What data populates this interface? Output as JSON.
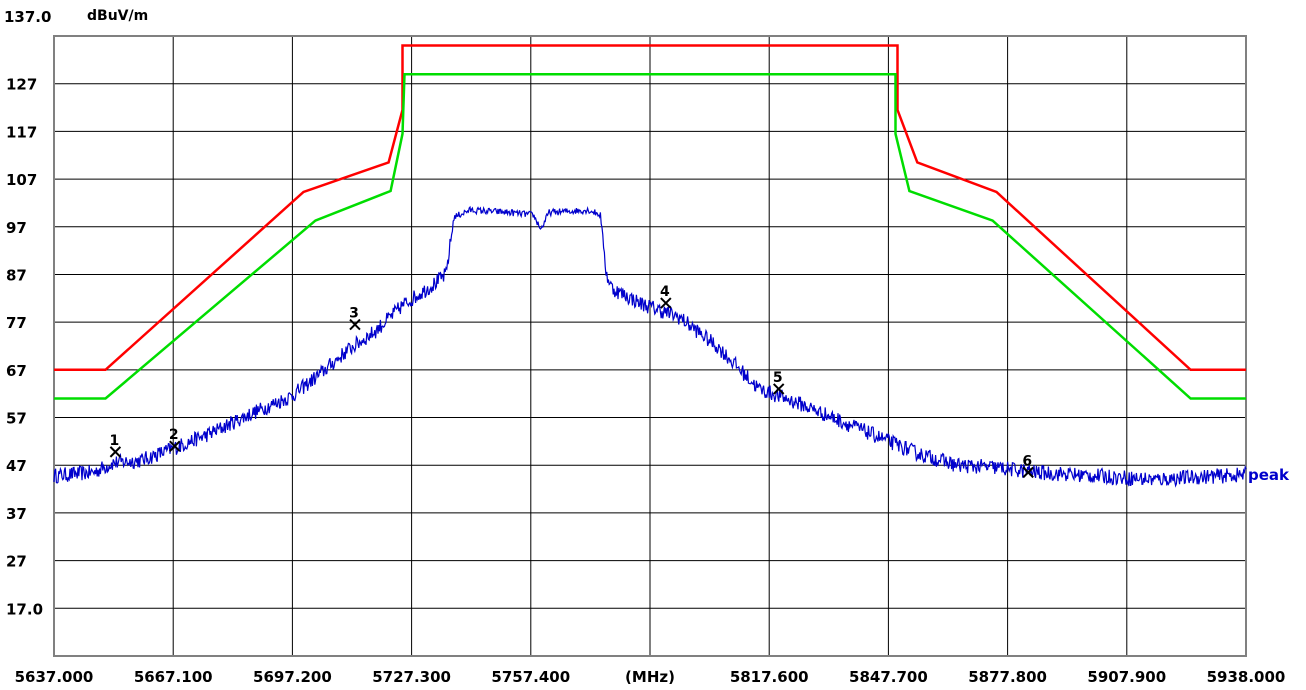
{
  "chart_data": {
    "type": "line",
    "title": "",
    "ylabel": "dBuV/m",
    "xlabel": "(MHz)",
    "y_top_label": "137.0",
    "ylim": [
      7,
      137
    ],
    "xlim": [
      5637.0,
      5938.0
    ],
    "y_ticks": [
      {
        "value": 127,
        "label": "127"
      },
      {
        "value": 117,
        "label": "117"
      },
      {
        "value": 107,
        "label": "107"
      },
      {
        "value": 97,
        "label": "97"
      },
      {
        "value": 87,
        "label": "87"
      },
      {
        "value": 77,
        "label": "77"
      },
      {
        "value": 67,
        "label": "67"
      },
      {
        "value": 57,
        "label": "57"
      },
      {
        "value": 47,
        "label": "47"
      },
      {
        "value": 37,
        "label": "37"
      },
      {
        "value": 27,
        "label": "27"
      },
      {
        "value": 17,
        "label": "17.0"
      }
    ],
    "x_ticks": [
      {
        "value": 5637.0,
        "label": "5637.000"
      },
      {
        "value": 5667.1,
        "label": "5667.100"
      },
      {
        "value": 5697.2,
        "label": "5697.200"
      },
      {
        "value": 5727.3,
        "label": "5727.300"
      },
      {
        "value": 5757.4,
        "label": "5757.400"
      },
      {
        "value": 5787.5,
        "label": "(MHz)"
      },
      {
        "value": 5817.6,
        "label": "5817.600"
      },
      {
        "value": 5847.7,
        "label": "5847.700"
      },
      {
        "value": 5877.8,
        "label": "5877.800"
      },
      {
        "value": 5907.9,
        "label": "5907.900"
      },
      {
        "value": 5938.0,
        "label": "5938.000"
      }
    ],
    "grid": true,
    "series": [
      {
        "color": "#ff0000",
        "points": [
          [
            5637.0,
            67.0
          ],
          [
            5650.0,
            67.0
          ],
          [
            5700.0,
            104.3
          ],
          [
            5721.5,
            110.5
          ],
          [
            5725.0,
            121.5
          ],
          [
            5725.0,
            135.0
          ],
          [
            5850.0,
            135.0
          ],
          [
            5850.0,
            121.5
          ],
          [
            5855.0,
            110.5
          ],
          [
            5875.0,
            104.3
          ],
          [
            5924.0,
            67.0
          ],
          [
            5938.0,
            67.0
          ]
        ]
      },
      {
        "color": "#00dd00",
        "points": [
          [
            5637.0,
            61.0
          ],
          [
            5650.0,
            61.0
          ],
          [
            5703.0,
            98.3
          ],
          [
            5722.0,
            104.5
          ],
          [
            5725.0,
            116.5
          ],
          [
            5725.5,
            129.0
          ],
          [
            5849.5,
            129.0
          ],
          [
            5849.5,
            116.5
          ],
          [
            5853.0,
            104.5
          ],
          [
            5874.0,
            98.3
          ],
          [
            5924.0,
            61.0
          ],
          [
            5938.0,
            61.0
          ]
        ]
      },
      {
        "name": "peak",
        "color": "#0000cc",
        "points": [
          [
            5637.0,
            44.8
          ],
          [
            5647.0,
            45.5
          ],
          [
            5652.0,
            47.5
          ],
          [
            5659.0,
            48.0
          ],
          [
            5667.0,
            50.5
          ],
          [
            5676.0,
            53.5
          ],
          [
            5686.0,
            57.5
          ],
          [
            5697.0,
            61.5
          ],
          [
            5704.0,
            66.0
          ],
          [
            5711.0,
            71.0
          ],
          [
            5718.0,
            75.0
          ],
          [
            5725.0,
            80.5
          ],
          [
            5733.0,
            85.0
          ],
          [
            5736.0,
            87.0
          ],
          [
            5738.0,
            99.0
          ],
          [
            5742.0,
            100.5
          ],
          [
            5752.0,
            100.0
          ],
          [
            5758.0,
            99.5
          ],
          [
            5760.0,
            96.5
          ],
          [
            5762.0,
            100.0
          ],
          [
            5772.0,
            100.5
          ],
          [
            5775.0,
            99.5
          ],
          [
            5776.5,
            87.0
          ],
          [
            5778.0,
            84.0
          ],
          [
            5785.0,
            81.0
          ],
          [
            5795.0,
            78.0
          ],
          [
            5805.0,
            71.5
          ],
          [
            5815.0,
            63.0
          ],
          [
            5825.0,
            60.0
          ],
          [
            5835.0,
            56.5
          ],
          [
            5845.0,
            53.0
          ],
          [
            5855.0,
            49.5
          ],
          [
            5865.0,
            47.0
          ],
          [
            5875.0,
            46.5
          ],
          [
            5885.0,
            45.5
          ],
          [
            5895.0,
            45.0
          ],
          [
            5905.0,
            44.5
          ],
          [
            5915.0,
            44.0
          ],
          [
            5925.0,
            44.5
          ],
          [
            5938.0,
            45.0
          ]
        ]
      }
    ],
    "markers": [
      {
        "label": "1",
        "x": 5652.5,
        "y": 49.8
      },
      {
        "label": "2",
        "x": 5667.5,
        "y": 51.0
      },
      {
        "label": "3",
        "x": 5713.0,
        "y": 76.5
      },
      {
        "label": "4",
        "x": 5791.5,
        "y": 81.0
      },
      {
        "label": "5",
        "x": 5820.0,
        "y": 63.0
      },
      {
        "label": "6",
        "x": 5883.0,
        "y": 45.5
      }
    ]
  }
}
